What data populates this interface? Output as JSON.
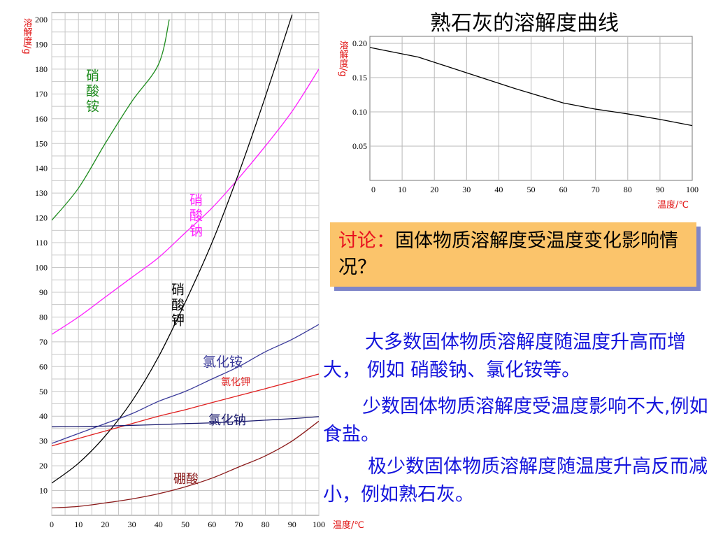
{
  "chart_data": [
    {
      "type": "line",
      "title": "",
      "ylabel": "溶解度/g",
      "xlabel": "温度/℃",
      "xlim": [
        0,
        100
      ],
      "ylim": [
        0,
        200
      ],
      "x_ticks": [
        0,
        10,
        20,
        30,
        40,
        50,
        60,
        70,
        80,
        90,
        100
      ],
      "y_ticks": [
        10,
        20,
        30,
        40,
        50,
        60,
        70,
        80,
        90,
        100,
        110,
        120,
        130,
        140,
        150,
        160,
        170,
        180,
        190,
        200
      ],
      "grid": true,
      "series": [
        {
          "name": "硝酸铵",
          "color": "#1e8c1e",
          "x": [
            0,
            10,
            20,
            30,
            40,
            44
          ],
          "y": [
            119,
            132,
            150,
            167,
            182,
            200
          ]
        },
        {
          "name": "硝酸钠",
          "color": "#ff1fff",
          "x": [
            0,
            10,
            20,
            30,
            40,
            50,
            60,
            70,
            80,
            90,
            100
          ],
          "y": [
            73,
            80,
            88,
            96,
            104,
            114,
            124,
            136,
            149,
            163,
            180
          ]
        },
        {
          "name": "硝酸钾",
          "color": "#000000",
          "x": [
            0,
            10,
            20,
            30,
            40,
            50,
            60,
            70,
            80,
            90
          ],
          "y": [
            13,
            21,
            32,
            46,
            64,
            86,
            110,
            138,
            169,
            202
          ]
        },
        {
          "name": "氯化铵",
          "color": "#3a3a9a",
          "x": [
            0,
            10,
            20,
            30,
            40,
            50,
            60,
            70,
            80,
            90,
            100
          ],
          "y": [
            29,
            33,
            37,
            41,
            46,
            50,
            55,
            60,
            66,
            71,
            77
          ]
        },
        {
          "name": "氯化钾",
          "color": "#e02020",
          "x": [
            0,
            10,
            20,
            30,
            40,
            50,
            60,
            70,
            80,
            90,
            100
          ],
          "y": [
            28,
            31,
            34,
            37,
            40,
            42.6,
            45.5,
            48.3,
            51.1,
            54,
            57
          ]
        },
        {
          "name": "氯化钠",
          "color": "#1a1a6e",
          "x": [
            0,
            10,
            20,
            30,
            40,
            50,
            60,
            70,
            80,
            90,
            100
          ],
          "y": [
            35.7,
            35.8,
            36,
            36.3,
            36.6,
            37,
            37.3,
            37.8,
            38.4,
            39,
            39.8
          ]
        },
        {
          "name": "硼酸",
          "color": "#8b1a1a",
          "x": [
            0,
            10,
            20,
            30,
            40,
            50,
            60,
            70,
            80,
            90,
            100
          ],
          "y": [
            3,
            3.6,
            5,
            6.6,
            8.7,
            11.5,
            15,
            19.5,
            24,
            30,
            38
          ]
        }
      ]
    },
    {
      "type": "line",
      "title": "熟石灰的溶解度曲线",
      "ylabel": "溶解度/g",
      "xlabel": "温度/℃",
      "xlim": [
        0,
        100
      ],
      "ylim": [
        0,
        0.2
      ],
      "x_ticks": [
        0,
        10,
        20,
        30,
        40,
        50,
        60,
        70,
        80,
        90,
        100
      ],
      "y_ticks": [
        0.05,
        0.1,
        0.15,
        0.2
      ],
      "y_tick_labels": [
        "0.05",
        "0.10",
        "0.15",
        "0.20"
      ],
      "grid": true,
      "series": [
        {
          "name": "",
          "color": "#000000",
          "x": [
            0,
            15,
            30,
            45,
            60,
            70,
            80,
            90,
            100
          ],
          "y": [
            0.194,
            0.18,
            0.157,
            0.134,
            0.113,
            0.104,
            0.097,
            0.089,
            0.08
          ]
        }
      ]
    }
  ],
  "discussion": {
    "label": "讨论：",
    "text": "固体物质溶解度受温度变化影响情况？"
  },
  "paragraphs": [
    "大多数固体物质溶解度随温度升高而增大， 例如 硝酸钠、氯化铵等。",
    "少数固体物质溶解度受温度影响不大,例如食盐。",
    "极少数固体物质溶解度随温度升高反而减小，例如熟石灰。"
  ]
}
